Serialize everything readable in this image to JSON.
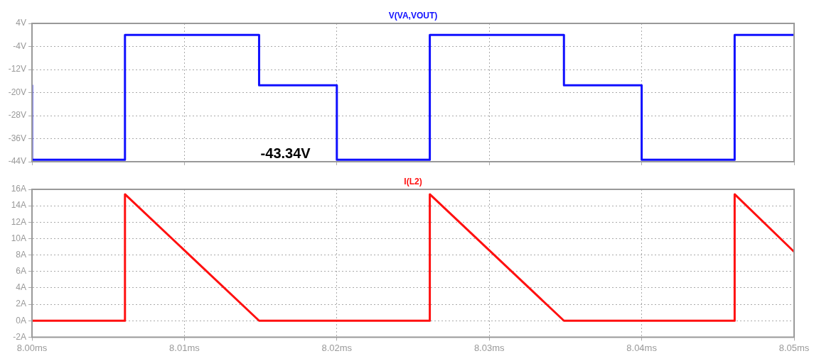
{
  "chart_data": [
    {
      "type": "line",
      "x": [
        8.0,
        8.0,
        8.0061,
        8.0061,
        8.0149,
        8.0149,
        8.02,
        8.02,
        8.0261,
        8.0261,
        8.0349,
        8.0349,
        8.04,
        8.04,
        8.0461,
        8.0461,
        8.05
      ],
      "series": [
        {
          "name": "V(VA,VOUT)",
          "color": "#1010ff",
          "values": [
            -17.5,
            -43.34,
            -43.34,
            0,
            0,
            -17.5,
            -17.5,
            -43.34,
            -43.34,
            0,
            0,
            -17.5,
            -17.5,
            -43.34,
            -43.34,
            0,
            0
          ]
        }
      ],
      "xlim": [
        8.0,
        8.05
      ],
      "xticks": [
        {
          "value": 8.0,
          "label": null
        },
        {
          "value": 8.01,
          "label": null
        },
        {
          "value": 8.02,
          "label": null
        },
        {
          "value": 8.03,
          "label": null
        },
        {
          "value": 8.04,
          "label": null
        },
        {
          "value": 8.05,
          "label": null
        }
      ],
      "ylim": [
        -44,
        4
      ],
      "yticks": [
        {
          "value": -44,
          "label": "-44V"
        },
        {
          "value": -36,
          "label": "-36V"
        },
        {
          "value": -28,
          "label": "-28V"
        },
        {
          "value": -20,
          "label": "-20V"
        },
        {
          "value": -12,
          "label": "-12V"
        },
        {
          "value": -4,
          "label": "-4V"
        },
        {
          "value": 4,
          "label": "4V"
        }
      ],
      "tick_labels": "y",
      "grid": true,
      "marker": "none",
      "line_style": "solid",
      "annotations": [
        "-43.34V"
      ]
    },
    {
      "type": "line",
      "x": [
        8.0,
        8.0061,
        8.0061,
        8.0149,
        8.0261,
        8.0261,
        8.0349,
        8.0461,
        8.0461,
        8.05
      ],
      "series": [
        {
          "name": "I(L2)",
          "color": "#ff1010",
          "values": [
            0,
            0,
            15.4,
            0,
            0,
            15.4,
            0,
            0,
            15.4,
            8.4
          ]
        }
      ],
      "xlim": [
        8.0,
        8.05
      ],
      "xticks": [
        {
          "value": 8.0,
          "label": "8.00ms"
        },
        {
          "value": 8.01,
          "label": "8.01ms"
        },
        {
          "value": 8.02,
          "label": "8.02ms"
        },
        {
          "value": 8.03,
          "label": "8.03ms"
        },
        {
          "value": 8.04,
          "label": "8.04ms"
        },
        {
          "value": 8.05,
          "label": "8.05ms"
        }
      ],
      "ylim": [
        -2,
        16
      ],
      "yticks": [
        {
          "value": -2,
          "label": "-2A"
        },
        {
          "value": 0,
          "label": "0A"
        },
        {
          "value": 2,
          "label": "2A"
        },
        {
          "value": 4,
          "label": "4A"
        },
        {
          "value": 6,
          "label": "6A"
        },
        {
          "value": 8,
          "label": "8A"
        },
        {
          "value": 10,
          "label": "10A"
        },
        {
          "value": 12,
          "label": "12A"
        },
        {
          "value": 14,
          "label": "14A"
        },
        {
          "value": 16,
          "label": "16A"
        }
      ],
      "grid": true,
      "marker": "none",
      "line_style": "solid"
    }
  ]
}
